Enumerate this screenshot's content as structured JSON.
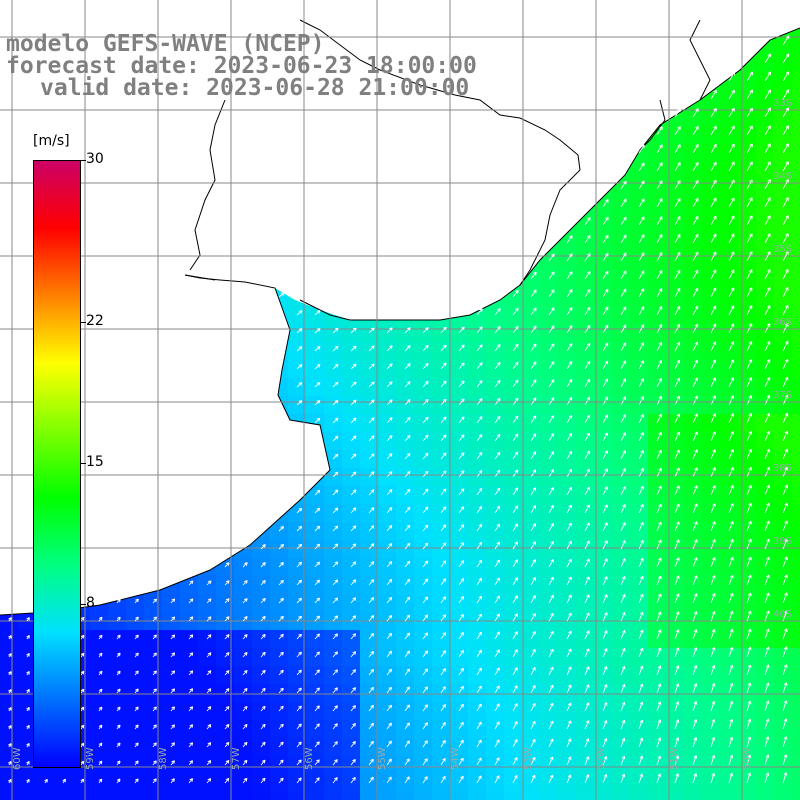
{
  "title": {
    "model": "modelo GEFS-WAVE (NCEP)",
    "forecast": "forecast date: 2023-06-23 18:00:00",
    "valid": "valid date: 2023-06-28 21:00:00"
  },
  "colorbar": {
    "unit": "[m/s]",
    "range": [
      0,
      30
    ],
    "ticks": [
      {
        "value": 30,
        "label": "30"
      },
      {
        "value": 22,
        "label": "22"
      },
      {
        "value": 15,
        "label": "15"
      },
      {
        "value": 8,
        "label": "8"
      }
    ],
    "colors": [
      "#0000ff",
      "#0070ff",
      "#00e0ff",
      "#00ff80",
      "#00ff00",
      "#80ff00",
      "#ffff00",
      "#ff8000",
      "#ff0000",
      "#cc0066"
    ]
  },
  "map": {
    "longitude_labels": [
      "60W",
      "59W",
      "58W",
      "57W",
      "56W",
      "55W",
      "54W",
      "53W",
      "52W",
      "51W",
      "50W"
    ],
    "latitude_labels": [
      "33S",
      "34S",
      "35S",
      "36S",
      "37S",
      "38S",
      "39S",
      "40S"
    ],
    "land_color": "#ffffff",
    "grid_color": "#888888",
    "coast_color": "#000000",
    "arrow_color": "#ffffff"
  }
}
